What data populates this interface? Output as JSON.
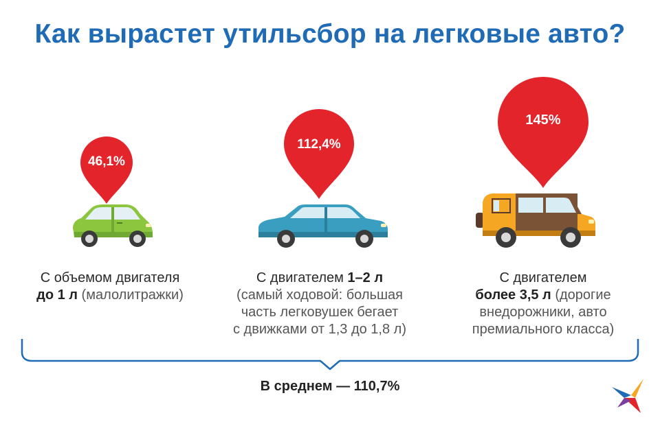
{
  "title": "Как вырастет утильсбор на легковые авто?",
  "items": [
    {
      "value": "46,1%",
      "pin_color": "#e3242b",
      "car": "compact-car-green",
      "line1": "С объемом двигателя",
      "line2_bold": "до 1 л",
      "line2_rest": " (малолитражки)"
    },
    {
      "value": "112,4%",
      "pin_color": "#e3242b",
      "car": "sedan-blue",
      "line1_plain": "С двигателем ",
      "line1_bold": "1–2 л",
      "line2": "(самый ходовой: большая",
      "line3": "часть легковушек бегает",
      "line4": "с движками от 1,3 до 1,8 л)"
    },
    {
      "value": "145%",
      "pin_color": "#e3242b",
      "car": "suv-orange",
      "line1": "С двигателем",
      "line2_bold": "более 3,5 л",
      "line2_rest": " (дорогие",
      "line3": "внедорожники, авто",
      "line4": "премиального класса)"
    }
  ],
  "average": "В среднем — 110,7%",
  "colors": {
    "title": "#1f6bb5",
    "pin": "#e3242b",
    "brace": "#1f6bb5"
  }
}
